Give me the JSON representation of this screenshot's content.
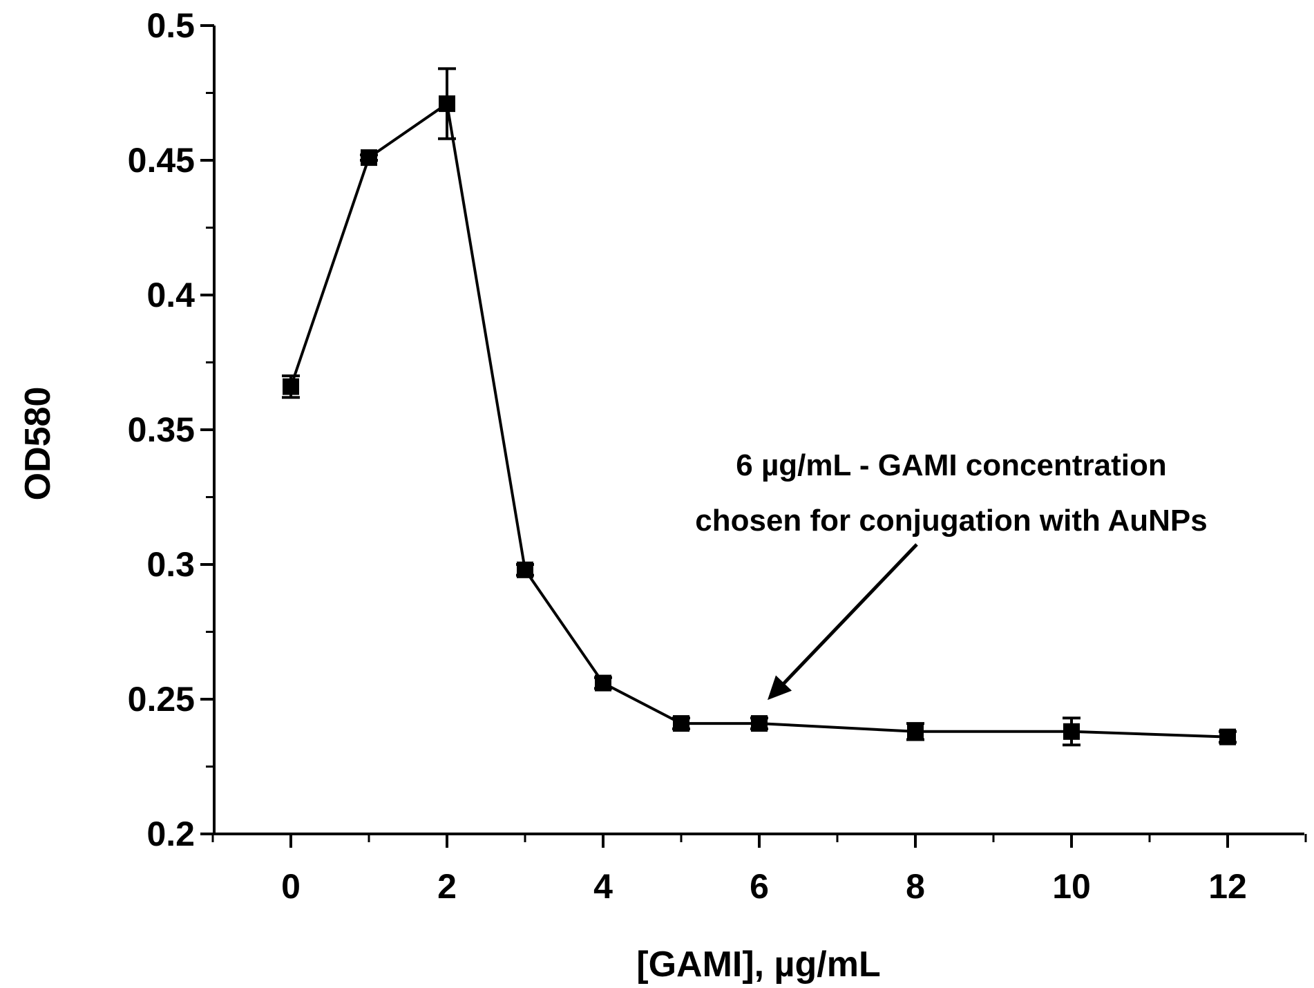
{
  "chart_data": {
    "type": "line",
    "title": "",
    "xlabel": "[GAMI], µg/mL",
    "ylabel": "OD580",
    "xlim": [
      -1,
      13
    ],
    "ylim": [
      0.2,
      0.5
    ],
    "x_ticks": [
      0,
      2,
      4,
      6,
      8,
      10,
      12
    ],
    "x_tick_labels": [
      "0",
      "2",
      "4",
      "6",
      "8",
      "10",
      "12"
    ],
    "x_minor_ticks": [
      -1,
      1,
      3,
      5,
      7,
      9,
      11,
      13
    ],
    "y_ticks": [
      0.2,
      0.25,
      0.3,
      0.35,
      0.4,
      0.45,
      0.5
    ],
    "y_tick_labels": [
      "0.2",
      "0.25",
      "0.3",
      "0.35",
      "0.4",
      "0.45",
      "0.5"
    ],
    "y_minor_ticks": [
      0.225,
      0.275,
      0.325,
      0.375,
      0.425,
      0.475
    ],
    "grid": false,
    "legend": "none",
    "series": [
      {
        "name": "OD580",
        "color": "#000000",
        "marker": "square",
        "x": [
          0,
          1,
          2,
          3,
          4,
          5,
          6,
          8,
          10,
          12
        ],
        "y": [
          0.366,
          0.451,
          0.471,
          0.298,
          0.256,
          0.241,
          0.241,
          0.238,
          0.238,
          0.236
        ],
        "error": [
          0.004,
          0.001,
          0.013,
          0.002,
          0.002,
          0.002,
          0.002,
          0.003,
          0.005,
          0.002
        ]
      }
    ],
    "annotation": {
      "lines": [
        "6 µg/mL - GAMI concentration",
        "chosen for conjugation with AuNPs"
      ],
      "points_to": {
        "x": 6,
        "y": 0.241
      }
    }
  }
}
